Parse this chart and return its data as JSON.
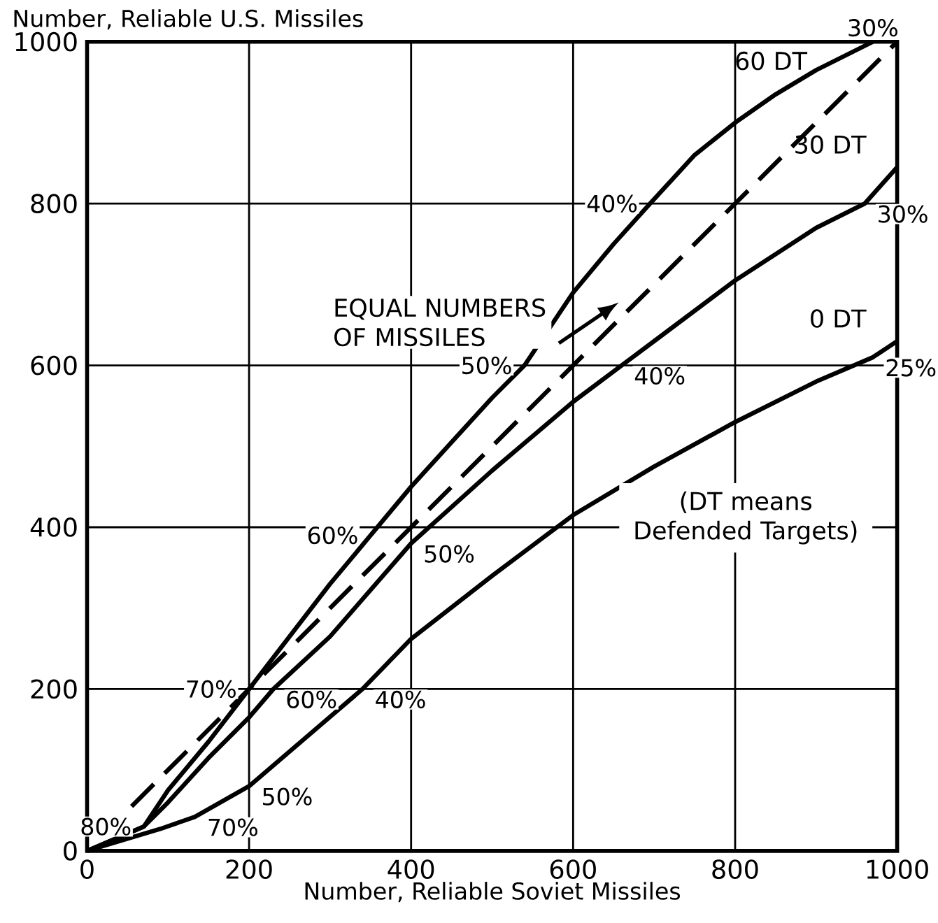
{
  "chart_data": {
    "type": "line",
    "xlabel": "Number, Reliable Soviet Missiles",
    "ylabel": "Number, Reliable U.S. Missiles",
    "xlim": [
      0,
      1000
    ],
    "ylim": [
      0,
      1000
    ],
    "xticks": [
      0,
      200,
      400,
      600,
      800,
      1000
    ],
    "yticks": [
      0,
      200,
      400,
      600,
      800,
      1000
    ],
    "grid": true,
    "line_style": "solid",
    "series": [
      {
        "name": "60 DT",
        "color": "#000000",
        "x": [
          0,
          70,
          100,
          150,
          200,
          250,
          300,
          350,
          400,
          450,
          500,
          540,
          600,
          650,
          695,
          750,
          800,
          850,
          900,
          970
        ],
        "values": [
          0,
          30,
          75,
          135,
          200,
          265,
          330,
          390,
          450,
          505,
          560,
          600,
          690,
          750,
          800,
          860,
          900,
          935,
          965,
          1000
        ]
      },
      {
        "name": "30 DT",
        "color": "#000000",
        "x": [
          0,
          70,
          100,
          150,
          200,
          230,
          300,
          400,
          500,
          600,
          660,
          700,
          800,
          900,
          960,
          1000
        ],
        "values": [
          0,
          30,
          60,
          115,
          165,
          200,
          265,
          380,
          470,
          555,
          600,
          630,
          705,
          770,
          800,
          845
        ]
      },
      {
        "name": "0 DT",
        "color": "#000000",
        "x": [
          0,
          90,
          133,
          200,
          270,
          340,
          400,
          500,
          600,
          700,
          800,
          900,
          970,
          1000
        ],
        "values": [
          0,
          27,
          42,
          80,
          140,
          200,
          262,
          340,
          415,
          475,
          530,
          580,
          610,
          630
        ]
      },
      {
        "color": "#000000",
        "line_style": "dashed",
        "x": [
          55,
          1000
        ],
        "values": [
          55,
          1000
        ]
      }
    ],
    "annotations": [
      {
        "text": "80%",
        "x": 70,
        "y": 30
      },
      {
        "text": "70%",
        "x": 200,
        "y": 200
      },
      {
        "text": "60%",
        "x": 350,
        "y": 390
      },
      {
        "text": "50%",
        "x": 540,
        "y": 600
      },
      {
        "text": "40%",
        "x": 695,
        "y": 800
      },
      {
        "text": "30%",
        "x": 970,
        "y": 1000
      },
      {
        "text": "70%",
        "x": 133,
        "y": 42
      },
      {
        "text": "60%",
        "x": 230,
        "y": 200
      },
      {
        "text": "50%",
        "x": 400,
        "y": 380
      },
      {
        "text": "40%",
        "x": 660,
        "y": 600
      },
      {
        "text": "30%",
        "x": 960,
        "y": 800
      },
      {
        "text": "50%",
        "x": 200,
        "y": 80
      },
      {
        "text": "40%",
        "x": 340,
        "y": 200
      },
      {
        "text": "25%",
        "x": 970,
        "y": 610
      },
      "EQUAL NUMBERS OF MISSILES",
      "(DT means Defended Targets)"
    ]
  }
}
